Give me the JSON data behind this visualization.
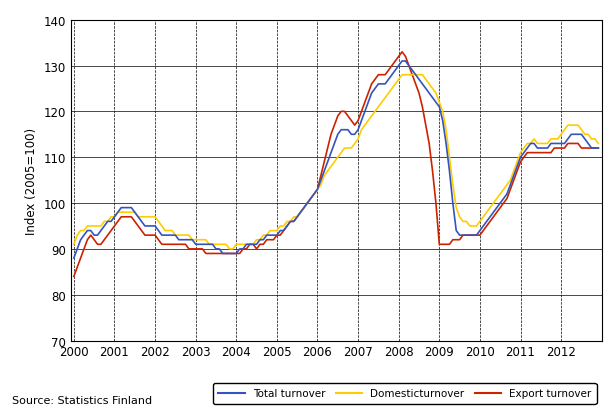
{
  "title": "",
  "ylabel": "Index (2005=100)",
  "xlabel": "",
  "source_text": "Source: Statistics Finland",
  "ylim": [
    70,
    140
  ],
  "yticks": [
    70,
    80,
    90,
    100,
    110,
    120,
    130,
    140
  ],
  "xlim_start": 1999.92,
  "xlim_end": 2013.0,
  "xtick_years": [
    2000,
    2001,
    2002,
    2003,
    2004,
    2005,
    2006,
    2007,
    2008,
    2009,
    2010,
    2011,
    2012
  ],
  "colors": {
    "total": "#3355bb",
    "domestic": "#ffcc00",
    "export": "#cc2200"
  },
  "legend_labels": [
    "Total turnover",
    "Domesticturnover",
    "Export turnover"
  ],
  "total_turnover": [
    88,
    90,
    92,
    93,
    94,
    94,
    93,
    93,
    94,
    95,
    96,
    96,
    97,
    98,
    99,
    99,
    99,
    99,
    98,
    97,
    96,
    95,
    95,
    95,
    95,
    94,
    93,
    93,
    93,
    93,
    93,
    92,
    92,
    92,
    92,
    92,
    91,
    91,
    91,
    91,
    91,
    91,
    90,
    90,
    89,
    89,
    89,
    89,
    89,
    90,
    90,
    91,
    91,
    91,
    91,
    92,
    92,
    93,
    93,
    93,
    93,
    94,
    94,
    95,
    96,
    96,
    97,
    98,
    99,
    100,
    101,
    102,
    103,
    105,
    107,
    109,
    111,
    113,
    115,
    116,
    116,
    116,
    115,
    115,
    116,
    118,
    120,
    122,
    124,
    125,
    126,
    126,
    126,
    127,
    128,
    129,
    130,
    131,
    131,
    130,
    129,
    128,
    127,
    126,
    125,
    124,
    123,
    122,
    121,
    118,
    113,
    107,
    100,
    94,
    93,
    93,
    93,
    93,
    93,
    93,
    94,
    95,
    96,
    97,
    98,
    99,
    100,
    101,
    102,
    104,
    106,
    108,
    110,
    111,
    112,
    113,
    113,
    112,
    112,
    112,
    112,
    113,
    113,
    113,
    113,
    113,
    114,
    115,
    115,
    115,
    115,
    114,
    113,
    112,
    112,
    112
  ],
  "domestic_turnover": [
    91,
    93,
    94,
    94,
    95,
    95,
    95,
    95,
    95,
    96,
    96,
    97,
    97,
    98,
    98,
    98,
    98,
    98,
    98,
    97,
    97,
    97,
    97,
    97,
    97,
    96,
    95,
    94,
    94,
    94,
    93,
    93,
    93,
    93,
    93,
    92,
    92,
    92,
    92,
    92,
    91,
    91,
    91,
    91,
    91,
    91,
    90,
    90,
    91,
    91,
    91,
    91,
    91,
    91,
    92,
    92,
    93,
    93,
    94,
    94,
    94,
    95,
    95,
    96,
    96,
    97,
    97,
    98,
    99,
    100,
    101,
    102,
    103,
    104,
    106,
    107,
    108,
    109,
    110,
    111,
    112,
    112,
    112,
    113,
    114,
    116,
    117,
    118,
    119,
    120,
    121,
    122,
    123,
    124,
    125,
    126,
    127,
    128,
    128,
    128,
    128,
    128,
    128,
    128,
    127,
    126,
    125,
    124,
    122,
    120,
    116,
    110,
    104,
    99,
    97,
    96,
    96,
    95,
    95,
    95,
    96,
    97,
    98,
    99,
    100,
    101,
    102,
    103,
    104,
    105,
    107,
    109,
    111,
    112,
    113,
    113,
    114,
    113,
    113,
    113,
    113,
    114,
    114,
    114,
    115,
    116,
    117,
    117,
    117,
    117,
    116,
    115,
    115,
    114,
    114,
    113
  ],
  "export_turnover": [
    84,
    86,
    88,
    90,
    92,
    93,
    92,
    91,
    91,
    92,
    93,
    94,
    95,
    96,
    97,
    97,
    97,
    97,
    96,
    95,
    94,
    93,
    93,
    93,
    93,
    92,
    91,
    91,
    91,
    91,
    91,
    91,
    91,
    91,
    90,
    90,
    90,
    90,
    90,
    89,
    89,
    89,
    89,
    89,
    89,
    89,
    89,
    89,
    89,
    89,
    90,
    90,
    91,
    91,
    90,
    91,
    91,
    92,
    92,
    92,
    93,
    93,
    94,
    95,
    96,
    96,
    97,
    98,
    99,
    100,
    101,
    102,
    103,
    106,
    109,
    112,
    115,
    117,
    119,
    120,
    120,
    119,
    118,
    117,
    118,
    120,
    122,
    124,
    126,
    127,
    128,
    128,
    128,
    129,
    130,
    131,
    132,
    133,
    132,
    130,
    128,
    126,
    124,
    121,
    117,
    113,
    107,
    100,
    91,
    91,
    91,
    91,
    92,
    92,
    92,
    93,
    93,
    93,
    93,
    93,
    93,
    94,
    95,
    96,
    97,
    98,
    99,
    100,
    101,
    103,
    105,
    107,
    109,
    110,
    111,
    111,
    111,
    111,
    111,
    111,
    111,
    111,
    112,
    112,
    112,
    112,
    113,
    113,
    113,
    113,
    112,
    112,
    112,
    112,
    112,
    112
  ]
}
